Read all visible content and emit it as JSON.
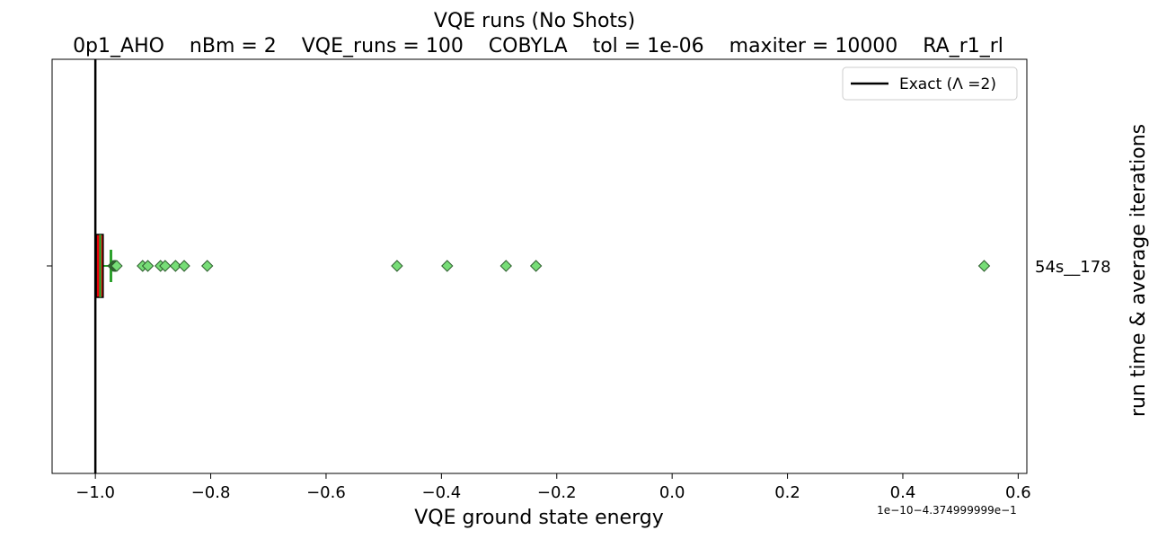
{
  "chart_data": {
    "type": "box",
    "orientation": "horizontal",
    "title": "VQE runs (No Shots)",
    "subtitle": "0p1_AHO    nBm = 2    VQE_runs = 100    COBYLA    tol = 1e-06    maxiter = 10000    RA_r1_rl",
    "xlabel": "VQE ground state energy",
    "ylabel_right": "run time & average iterations",
    "offset_label": "1e−10−4.374999999e−1",
    "xlim": [
      -1.075,
      0.615
    ],
    "x_ticks": [
      -1.0,
      -0.8,
      -0.6,
      -0.4,
      -0.2,
      0.0,
      0.2,
      0.4,
      0.6
    ],
    "x_tick_labels": [
      "−1.0",
      "−0.8",
      "−0.6",
      "−0.4",
      "−0.2",
      "0.0",
      "0.2",
      "0.4",
      "0.6"
    ],
    "categories": [
      "54s__178"
    ],
    "exact_line": {
      "x": -1.0,
      "label": "Exact (Λ =2)",
      "color": "#000000"
    },
    "legend_position": "top-right",
    "grid": false,
    "box": {
      "q1": -0.9985,
      "median": -0.9915,
      "q3": -0.9865,
      "whisker_low": -1.0,
      "whisker_high": -0.973,
      "fill": "#e8000b",
      "median_color": "#2ca02c",
      "whisker_color": "#2ca02c"
    },
    "outliers": [
      -0.969,
      -0.967,
      -0.965,
      -0.963,
      -0.918,
      -0.909,
      -0.887,
      -0.879,
      -0.861,
      -0.846,
      -0.806,
      -0.477,
      -0.39,
      -0.288,
      -0.236,
      0.541
    ],
    "outlier_color": "#77dd77"
  }
}
